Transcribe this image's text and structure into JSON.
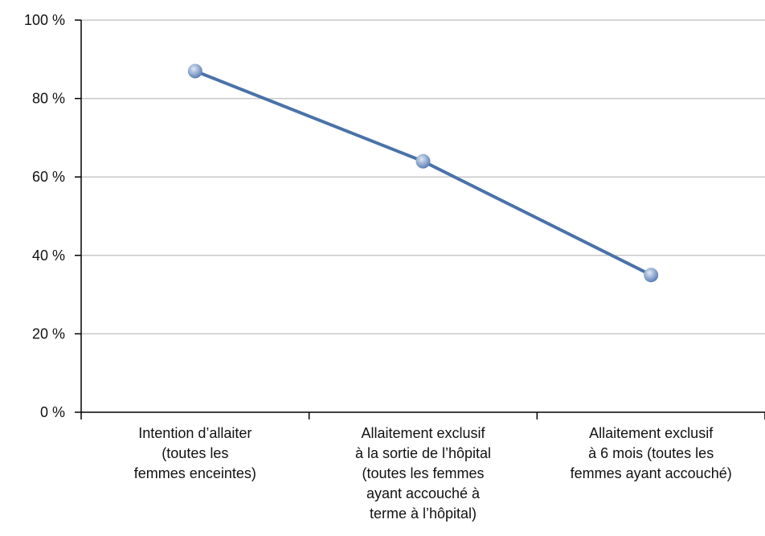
{
  "chart_data": {
    "type": "line",
    "categories": [
      "Intention d’allaiter\n(toutes les\nfemmes enceintes)",
      "Allaitement exclusif\nà la sortie de l’hôpital\n(toutes les femmes\nayant accouché à\nterme à l’hôpital)",
      "Allaitement exclusif\nà 6 mois (toutes les\nfemmes ayant accouché)"
    ],
    "values": [
      87,
      64,
      35
    ],
    "color": "#4a72a8",
    "ylim": [
      0,
      100
    ],
    "yticks": [
      {
        "value": 0,
        "label": "0 %"
      },
      {
        "value": 20,
        "label": "20 %"
      },
      {
        "value": 40,
        "label": "40 %"
      },
      {
        "value": 60,
        "label": "60 %"
      },
      {
        "value": 80,
        "label": "80 %"
      },
      {
        "value": 100,
        "label": "100 %"
      }
    ],
    "grid": true
  }
}
